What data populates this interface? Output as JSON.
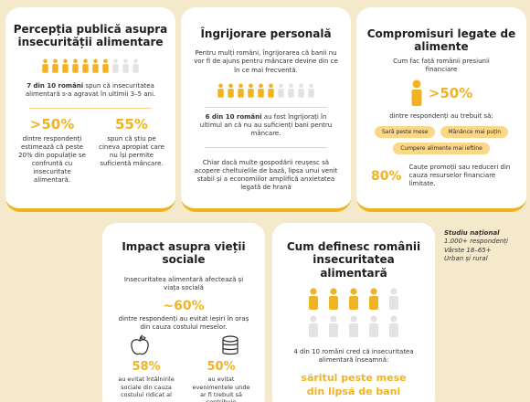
{
  "colors": {
    "accent": "#f0b323",
    "pale": "#e3e3e3",
    "pill": "#fbd887",
    "background": "#f5e9cc"
  },
  "card1": {
    "title": "Percepția publică asupra insecurității alimentare",
    "icons_filled": 7,
    "icons_total": 10,
    "stat_lead": "7 din 10 români",
    "stat_text": "spun că insecuritatea alimentară s-a agravat în ultimii 3–5 ani.",
    "stat_a_value": ">50%",
    "stat_a_text": "dintre respondenți estimează că peste 20% din populație se confruntă cu insecuritate alimentară.",
    "stat_b_value": "55%",
    "stat_b_text": "spun că știu pe cineva apropiat care nu își permite suficientă mâncare."
  },
  "card2": {
    "title": "Îngrijorare personală",
    "intro": "Pentru mulți români, îngrijorarea că banii nu vor fi de ajuns pentru mâncare devine din ce în ce mai frecventă.",
    "icons_filled": 6,
    "icons_total": 10,
    "stat_lead": "6 din 10 români",
    "stat_text": "au fost îngrijorați în ultimul an că nu au suficienți bani pentru mâncare.",
    "bottom": "Chiar dacă multe gospodării reușesc să acopere cheltuielile de bază, lipsa unui venit stabil și a economiilor amplifică anxietatea legată de hrană"
  },
  "card3": {
    "title": "Compromisuri legate de alimente",
    "subtitle": "Cum fac față românii presiunii financiare",
    "value": ">50%",
    "value_text": "dintre respondenți au trebuit să:",
    "pills": [
      "Sară peste mese",
      "Mănânce mai puțin",
      "Cumpere alimente mai ieftine"
    ],
    "bottom_value": "80%",
    "bottom_text": "Caute promoții sau reduceri din cauza resurselor financiare limitate."
  },
  "side": {
    "line1": "Studiu național",
    "line2": "1.000+ respondenți",
    "line3": "Vârste 18–65+",
    "line4": "Urban și rural"
  },
  "card4": {
    "title": "Impact asupra vieții sociale",
    "intro": "Insecuritatea alimentară afectează și viața socială",
    "value": "~60%",
    "value_text": "dintre respondenți au evitat ieșiri în oraș din cauza costului meselor.",
    "stat_a_value": "58%",
    "stat_a_text": "au evitat întâlnirile sociale din cauza costului ridicat al",
    "stat_b_value": "50%",
    "stat_b_text": "au evitat evenimentele unde ar fi trebuit să contribuie"
  },
  "card5": {
    "title": "Cum definesc românii insecuritatea alimentară",
    "icons_filled": 4,
    "icons_total": 10,
    "text": "4 din 10 români cred că insecuritatea alimentară înseamnă:",
    "highlight": "săritul peste mese din lipsă de bani"
  }
}
